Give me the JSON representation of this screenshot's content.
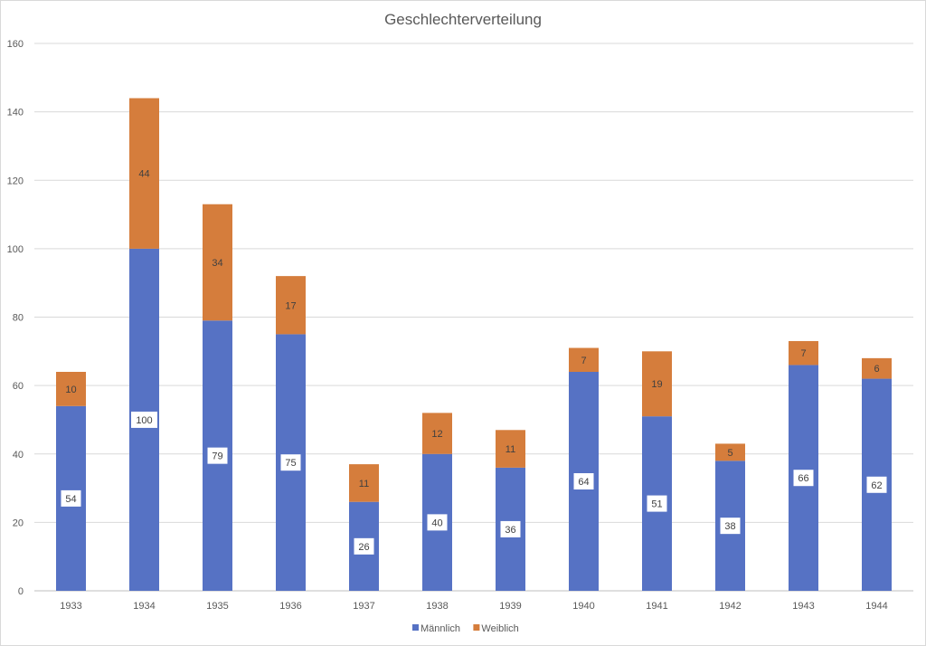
{
  "chart_data": {
    "type": "bar",
    "stacked": true,
    "title": "Geschlechterverteilung",
    "xlabel": "",
    "ylabel": "",
    "categories": [
      "1933",
      "1934",
      "1935",
      "1936",
      "1937",
      "1938",
      "1939",
      "1940",
      "1941",
      "1942",
      "1943",
      "1944"
    ],
    "series": [
      {
        "name": "Männlich",
        "color": "#5672C4",
        "values": [
          54,
          100,
          79,
          75,
          26,
          40,
          36,
          64,
          51,
          38,
          66,
          62
        ]
      },
      {
        "name": "Weiblich",
        "color": "#D57D3C",
        "values": [
          10,
          44,
          34,
          17,
          11,
          12,
          11,
          7,
          19,
          5,
          7,
          6
        ]
      }
    ],
    "ylim": [
      0,
      160
    ],
    "yticks": [
      0,
      20,
      40,
      60,
      80,
      100,
      120,
      140,
      160
    ],
    "grid": true,
    "legend": "bottom",
    "data_labels": true
  }
}
